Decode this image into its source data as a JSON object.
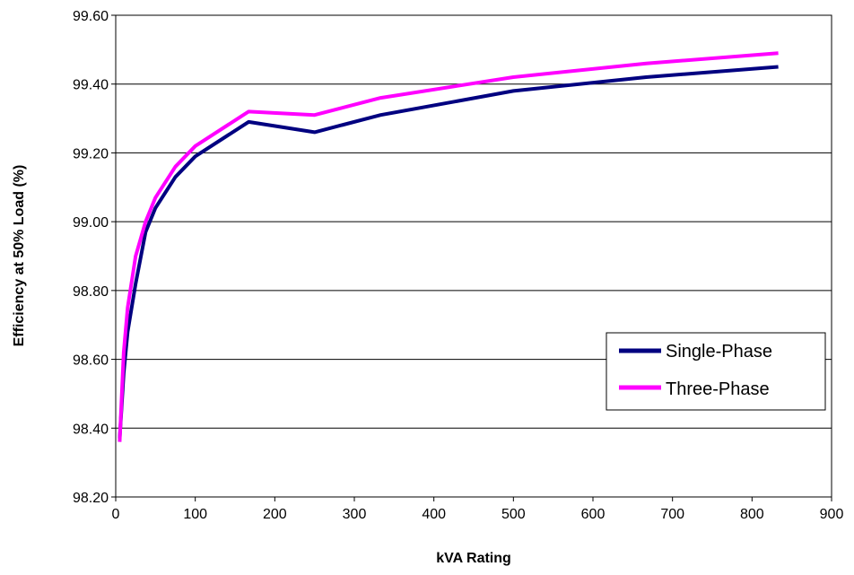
{
  "chart_data": {
    "type": "line",
    "xlabel": "kVA Rating",
    "ylabel": "Efficiency at 50% Load (%)",
    "xlim": [
      0,
      900
    ],
    "ylim": [
      98.2,
      99.6
    ],
    "x_ticks": [
      "0",
      "100",
      "200",
      "300",
      "400",
      "500",
      "600",
      "700",
      "800",
      "900"
    ],
    "y_ticks": [
      "98.20",
      "98.40",
      "98.60",
      "98.80",
      "99.00",
      "99.20",
      "99.40",
      "99.60"
    ],
    "grid": "horizontal",
    "legend_position": "right",
    "series": [
      {
        "name": "Single-Phase",
        "color": "#000080",
        "x": [
          5,
          10,
          15,
          25,
          37.5,
          50,
          75,
          100,
          167,
          250,
          333,
          500,
          667,
          833
        ],
        "y": [
          98.37,
          98.56,
          98.68,
          98.82,
          98.97,
          99.04,
          99.13,
          99.19,
          99.29,
          99.26,
          99.31,
          99.38,
          99.42,
          99.45
        ]
      },
      {
        "name": "Three-Phase",
        "color": "#ff00ff",
        "x": [
          5,
          10,
          15,
          25,
          37.5,
          50,
          75,
          100,
          167,
          250,
          333,
          500,
          667,
          833
        ],
        "y": [
          98.36,
          98.62,
          98.75,
          98.9,
          99.0,
          99.07,
          99.16,
          99.22,
          99.32,
          99.31,
          99.36,
          99.42,
          99.46,
          99.49
        ]
      }
    ]
  }
}
